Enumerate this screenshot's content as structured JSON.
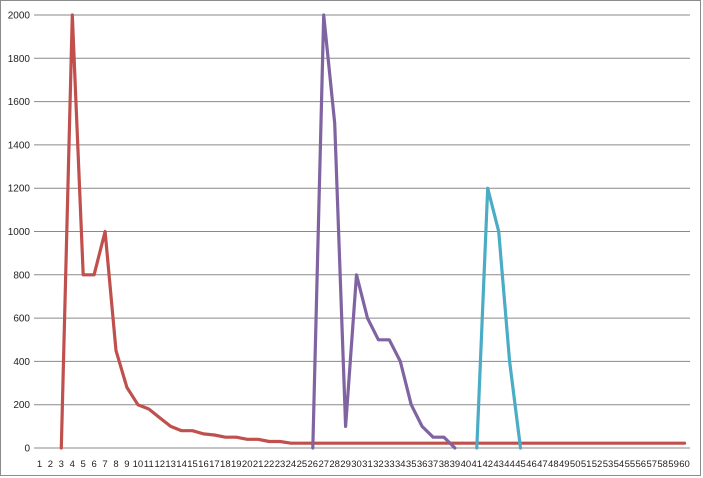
{
  "chart_data": {
    "type": "line",
    "title": "",
    "xlabel": "",
    "ylabel": "",
    "grid": true,
    "legend": "none",
    "ylim": [
      0,
      2000
    ],
    "y_ticks": [
      "0",
      "200",
      "400",
      "600",
      "800",
      "1000",
      "1200",
      "1400",
      "1600",
      "1800",
      "2000"
    ],
    "categories": [
      "1",
      "2",
      "3",
      "4",
      "5",
      "6",
      "7",
      "8",
      "9",
      "10",
      "11",
      "12",
      "13",
      "14",
      "15",
      "16",
      "17",
      "18",
      "19",
      "20",
      "21",
      "22",
      "23",
      "24",
      "25",
      "26",
      "27",
      "28",
      "29",
      "30",
      "31",
      "32",
      "33",
      "34",
      "35",
      "36",
      "37",
      "38",
      "39",
      "40",
      "41",
      "42",
      "43",
      "44",
      "45",
      "46",
      "47",
      "48",
      "49",
      "50",
      "51",
      "52",
      "53",
      "54",
      "55",
      "56",
      "57",
      "58",
      "59",
      "60"
    ],
    "series": [
      {
        "color": "#c0504d",
        "points": [
          [
            3,
            0
          ],
          [
            4,
            2000
          ],
          [
            5,
            800
          ],
          [
            6,
            800
          ],
          [
            7,
            1000
          ],
          [
            8,
            450
          ],
          [
            9,
            280
          ],
          [
            10,
            200
          ],
          [
            11,
            180
          ],
          [
            12,
            140
          ],
          [
            13,
            100
          ],
          [
            14,
            80
          ],
          [
            15,
            80
          ],
          [
            16,
            65
          ],
          [
            17,
            60
          ],
          [
            18,
            50
          ],
          [
            19,
            50
          ],
          [
            20,
            40
          ],
          [
            21,
            40
          ],
          [
            22,
            30
          ],
          [
            23,
            30
          ],
          [
            24,
            22
          ],
          [
            25,
            22
          ],
          [
            26,
            22
          ],
          [
            27,
            22
          ],
          [
            28,
            22
          ],
          [
            29,
            22
          ],
          [
            30,
            22
          ],
          [
            31,
            22
          ],
          [
            32,
            22
          ],
          [
            33,
            22
          ],
          [
            34,
            22
          ],
          [
            35,
            22
          ],
          [
            36,
            22
          ],
          [
            37,
            22
          ],
          [
            38,
            22
          ],
          [
            39,
            22
          ],
          [
            40,
            22
          ],
          [
            41,
            22
          ],
          [
            42,
            22
          ],
          [
            43,
            22
          ],
          [
            44,
            22
          ],
          [
            45,
            22
          ],
          [
            46,
            22
          ],
          [
            47,
            22
          ],
          [
            48,
            22
          ],
          [
            49,
            22
          ],
          [
            50,
            22
          ],
          [
            51,
            22
          ],
          [
            52,
            22
          ],
          [
            53,
            22
          ],
          [
            54,
            22
          ],
          [
            55,
            22
          ],
          [
            56,
            22
          ],
          [
            57,
            22
          ],
          [
            58,
            22
          ],
          [
            59,
            22
          ],
          [
            60,
            22
          ]
        ]
      },
      {
        "color": "#8064a2",
        "points": [
          [
            26,
            0
          ],
          [
            27,
            2000
          ],
          [
            28,
            1500
          ],
          [
            29,
            100
          ],
          [
            30,
            800
          ],
          [
            31,
            600
          ],
          [
            32,
            500
          ],
          [
            33,
            500
          ],
          [
            34,
            400
          ],
          [
            35,
            200
          ],
          [
            36,
            100
          ],
          [
            37,
            50
          ],
          [
            38,
            50
          ],
          [
            39,
            0
          ]
        ]
      },
      {
        "color": "#4bacc6",
        "points": [
          [
            41,
            0
          ],
          [
            42,
            1200
          ],
          [
            43,
            1000
          ],
          [
            44,
            400
          ],
          [
            45,
            0
          ]
        ]
      }
    ]
  }
}
